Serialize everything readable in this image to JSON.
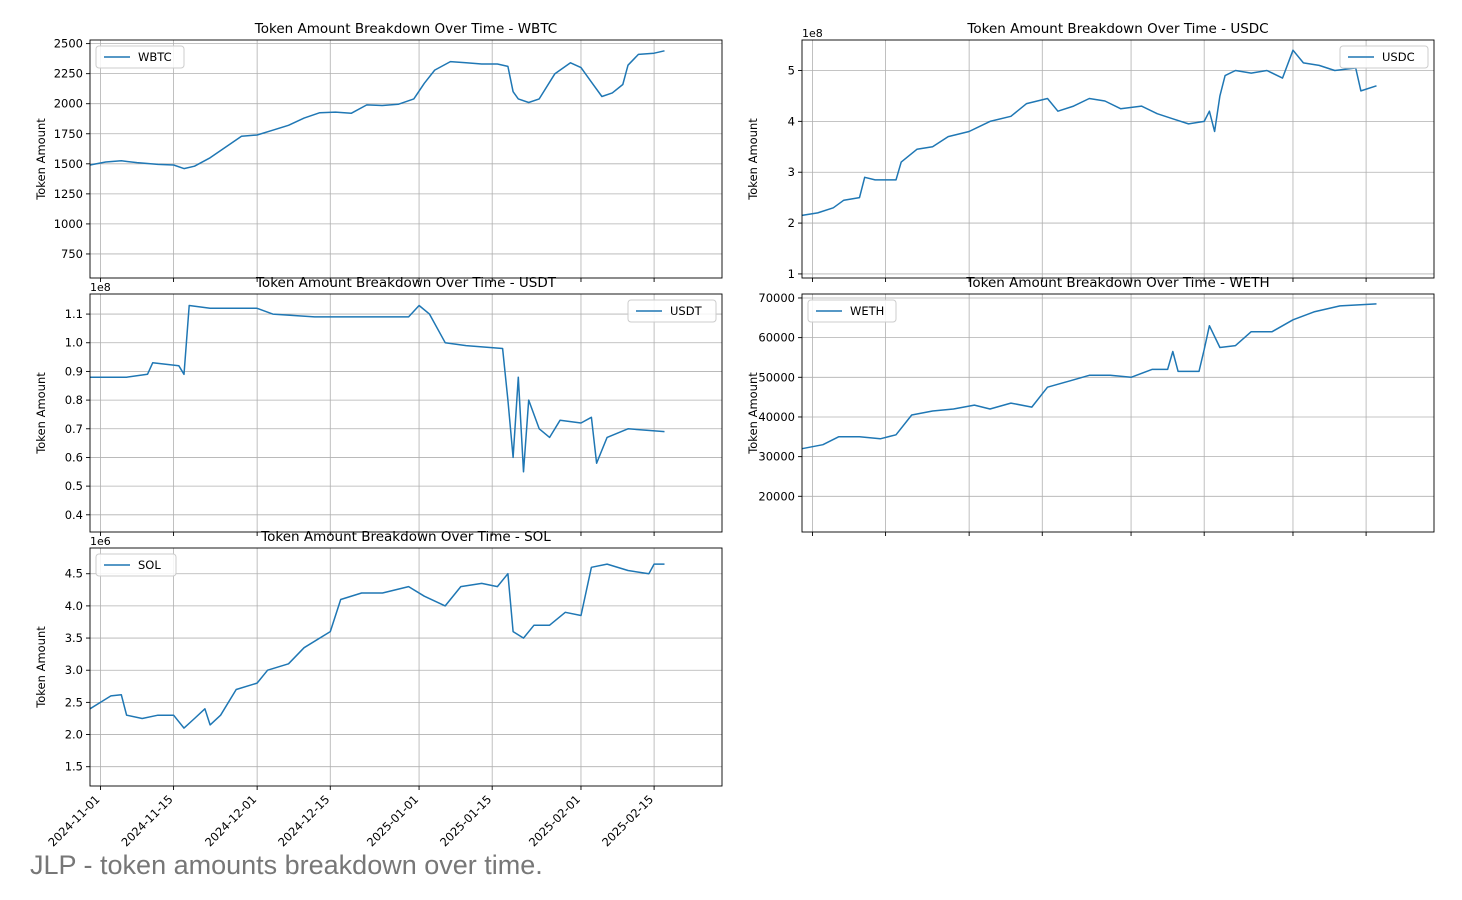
{
  "caption": "JLP - token amounts breakdown over time.",
  "colors": {
    "line": "#1f77b4",
    "grid": "#b0b0b0",
    "axis": "#000000",
    "legend_border": "#cccccc"
  },
  "shared_x_ticks": [
    "2024-11-01",
    "2024-11-15",
    "2024-12-01",
    "2024-12-15",
    "2025-01-01",
    "2025-01-15",
    "2025-02-01",
    "2025-02-15"
  ],
  "chart_data": [
    {
      "type": "line",
      "title": "Token Amount Breakdown Over Time - WBTC",
      "ylabel": "Token Amount",
      "offset_text": "",
      "legend": {
        "label": "WBTC",
        "placement": "top-left"
      },
      "ylim": [
        550,
        2530
      ],
      "xlim": [
        "2024-10-30",
        "2025-02-28"
      ],
      "yticks": [
        750,
        1000,
        1250,
        1500,
        1750,
        2000,
        2250,
        2500
      ],
      "ytick_labels": [
        "750",
        "1000",
        "1250",
        "1500",
        "1750",
        "2000",
        "2250",
        "2500"
      ],
      "xticks": [
        "2024-11-01",
        "2024-11-15",
        "2024-12-01",
        "2024-12-15",
        "2025-01-01",
        "2025-01-15",
        "2025-02-01",
        "2025-02-15"
      ],
      "show_xtick_labels": false,
      "grid": true,
      "series": [
        {
          "name": "WBTC",
          "points": [
            [
              "2024-10-30",
              1490
            ],
            [
              "2024-11-02",
              1515
            ],
            [
              "2024-11-05",
              1525
            ],
            [
              "2024-11-08",
              1510
            ],
            [
              "2024-11-12",
              1495
            ],
            [
              "2024-11-15",
              1490
            ],
            [
              "2024-11-17",
              1460
            ],
            [
              "2024-11-19",
              1480
            ],
            [
              "2024-11-22",
              1550
            ],
            [
              "2024-11-25",
              1640
            ],
            [
              "2024-11-28",
              1730
            ],
            [
              "2024-12-01",
              1740
            ],
            [
              "2024-12-04",
              1780
            ],
            [
              "2024-12-07",
              1820
            ],
            [
              "2024-12-10",
              1880
            ],
            [
              "2024-12-13",
              1925
            ],
            [
              "2024-12-16",
              1930
            ],
            [
              "2024-12-19",
              1920
            ],
            [
              "2024-12-22",
              1990
            ],
            [
              "2024-12-25",
              1985
            ],
            [
              "2024-12-28",
              1995
            ],
            [
              "2024-12-31",
              2040
            ],
            [
              "2025-01-02",
              2170
            ],
            [
              "2025-01-04",
              2280
            ],
            [
              "2025-01-07",
              2350
            ],
            [
              "2025-01-10",
              2340
            ],
            [
              "2025-01-13",
              2330
            ],
            [
              "2025-01-16",
              2330
            ],
            [
              "2025-01-18",
              2310
            ],
            [
              "2025-01-19",
              2100
            ],
            [
              "2025-01-20",
              2040
            ],
            [
              "2025-01-22",
              2010
            ],
            [
              "2025-01-24",
              2040
            ],
            [
              "2025-01-27",
              2250
            ],
            [
              "2025-01-30",
              2340
            ],
            [
              "2025-02-01",
              2300
            ],
            [
              "2025-02-03",
              2180
            ],
            [
              "2025-02-05",
              2060
            ],
            [
              "2025-02-07",
              2090
            ],
            [
              "2025-02-09",
              2160
            ],
            [
              "2025-02-10",
              2320
            ],
            [
              "2025-02-12",
              2410
            ],
            [
              "2025-02-15",
              2420
            ],
            [
              "2025-02-17",
              2440
            ]
          ]
        }
      ]
    },
    {
      "type": "line",
      "title": "Token Amount Breakdown Over Time - USDC",
      "ylabel": "Token Amount",
      "offset_text": "1e8",
      "legend": {
        "label": "USDC",
        "placement": "top-right"
      },
      "ylim": [
        0.92,
        5.6
      ],
      "xlim": [
        "2024-10-30",
        "2025-02-28"
      ],
      "yticks": [
        1,
        2,
        3,
        4,
        5
      ],
      "ytick_labels": [
        "1",
        "2",
        "3",
        "4",
        "5"
      ],
      "xticks": [
        "2024-11-01",
        "2024-11-15",
        "2024-12-01",
        "2024-12-15",
        "2025-01-01",
        "2025-01-15",
        "2025-02-01",
        "2025-02-15"
      ],
      "show_xtick_labels": false,
      "grid": true,
      "series": [
        {
          "name": "USDC",
          "points": [
            [
              "2024-10-30",
              2.15
            ],
            [
              "2024-11-02",
              2.2
            ],
            [
              "2024-11-05",
              2.3
            ],
            [
              "2024-11-07",
              2.45
            ],
            [
              "2024-11-10",
              2.5
            ],
            [
              "2024-11-11",
              2.9
            ],
            [
              "2024-11-13",
              2.85
            ],
            [
              "2024-11-15",
              2.85
            ],
            [
              "2024-11-17",
              2.85
            ],
            [
              "2024-11-18",
              3.2
            ],
            [
              "2024-11-21",
              3.45
            ],
            [
              "2024-11-24",
              3.5
            ],
            [
              "2024-11-27",
              3.7
            ],
            [
              "2024-12-01",
              3.8
            ],
            [
              "2024-12-05",
              4.0
            ],
            [
              "2024-12-09",
              4.1
            ],
            [
              "2024-12-12",
              4.35
            ],
            [
              "2024-12-16",
              4.45
            ],
            [
              "2024-12-18",
              4.2
            ],
            [
              "2024-12-21",
              4.3
            ],
            [
              "2024-12-24",
              4.45
            ],
            [
              "2024-12-27",
              4.4
            ],
            [
              "2024-12-30",
              4.25
            ],
            [
              "2025-01-03",
              4.3
            ],
            [
              "2025-01-06",
              4.15
            ],
            [
              "2025-01-09",
              4.05
            ],
            [
              "2025-01-12",
              3.95
            ],
            [
              "2025-01-15",
              4.0
            ],
            [
              "2025-01-16",
              4.2
            ],
            [
              "2025-01-17",
              3.8
            ],
            [
              "2025-01-18",
              4.5
            ],
            [
              "2025-01-19",
              4.9
            ],
            [
              "2025-01-21",
              5.0
            ],
            [
              "2025-01-24",
              4.95
            ],
            [
              "2025-01-27",
              5.0
            ],
            [
              "2025-01-30",
              4.85
            ],
            [
              "2025-02-01",
              5.4
            ],
            [
              "2025-02-03",
              5.15
            ],
            [
              "2025-02-06",
              5.1
            ],
            [
              "2025-02-09",
              5.0
            ],
            [
              "2025-02-13",
              5.05
            ],
            [
              "2025-02-14",
              4.6
            ],
            [
              "2025-02-17",
              4.7
            ]
          ]
        }
      ]
    },
    {
      "type": "line",
      "title": "Token Amount Breakdown Over Time - USDT",
      "ylabel": "Token Amount",
      "offset_text": "1e8",
      "legend": {
        "label": "USDT",
        "placement": "top-right"
      },
      "ylim": [
        0.34,
        1.17
      ],
      "xlim": [
        "2024-10-30",
        "2025-02-28"
      ],
      "yticks": [
        0.4,
        0.5,
        0.6,
        0.7,
        0.8,
        0.9,
        1.0,
        1.1
      ],
      "ytick_labels": [
        "0.4",
        "0.5",
        "0.6",
        "0.7",
        "0.8",
        "0.9",
        "1.0",
        "1.1"
      ],
      "xticks": [
        "2024-11-01",
        "2024-11-15",
        "2024-12-01",
        "2024-12-15",
        "2025-01-01",
        "2025-01-15",
        "2025-02-01",
        "2025-02-15"
      ],
      "show_xtick_labels": false,
      "grid": true,
      "series": [
        {
          "name": "USDT",
          "points": [
            [
              "2024-10-30",
              0.88
            ],
            [
              "2024-11-06",
              0.88
            ],
            [
              "2024-11-10",
              0.89
            ],
            [
              "2024-11-11",
              0.93
            ],
            [
              "2024-11-16",
              0.92
            ],
            [
              "2024-11-17",
              0.89
            ],
            [
              "2024-11-18",
              1.13
            ],
            [
              "2024-11-22",
              1.12
            ],
            [
              "2024-11-28",
              1.12
            ],
            [
              "2024-12-01",
              1.12
            ],
            [
              "2024-12-04",
              1.1
            ],
            [
              "2024-12-12",
              1.09
            ],
            [
              "2024-12-22",
              1.09
            ],
            [
              "2024-12-30",
              1.09
            ],
            [
              "2025-01-01",
              1.13
            ],
            [
              "2025-01-03",
              1.1
            ],
            [
              "2025-01-06",
              1.0
            ],
            [
              "2025-01-10",
              0.99
            ],
            [
              "2025-01-17",
              0.98
            ],
            [
              "2025-01-18",
              0.8
            ],
            [
              "2025-01-19",
              0.6
            ],
            [
              "2025-01-20",
              0.88
            ],
            [
              "2025-01-21",
              0.55
            ],
            [
              "2025-01-22",
              0.8
            ],
            [
              "2025-01-24",
              0.7
            ],
            [
              "2025-01-26",
              0.67
            ],
            [
              "2025-01-28",
              0.73
            ],
            [
              "2025-02-01",
              0.72
            ],
            [
              "2025-02-03",
              0.74
            ],
            [
              "2025-02-04",
              0.58
            ],
            [
              "2025-02-06",
              0.67
            ],
            [
              "2025-02-10",
              0.7
            ],
            [
              "2025-02-17",
              0.69
            ]
          ]
        }
      ]
    },
    {
      "type": "line",
      "title": "Token Amount Breakdown Over Time - WETH",
      "ylabel": "Token Amount",
      "offset_text": "",
      "legend": {
        "label": "WETH",
        "placement": "top-left"
      },
      "ylim": [
        11000,
        71000
      ],
      "xlim": [
        "2024-10-30",
        "2025-02-28"
      ],
      "yticks": [
        20000,
        30000,
        40000,
        50000,
        60000,
        70000
      ],
      "ytick_labels": [
        "20000",
        "30000",
        "40000",
        "50000",
        "60000",
        "70000"
      ],
      "xticks": [
        "2024-11-01",
        "2024-11-15",
        "2024-12-01",
        "2024-12-15",
        "2025-01-01",
        "2025-01-15",
        "2025-02-01",
        "2025-02-15"
      ],
      "show_xtick_labels": false,
      "grid": true,
      "series": [
        {
          "name": "WETH",
          "points": [
            [
              "2024-10-30",
              32000
            ],
            [
              "2024-11-03",
              33000
            ],
            [
              "2024-11-06",
              35000
            ],
            [
              "2024-11-10",
              35000
            ],
            [
              "2024-11-14",
              34500
            ],
            [
              "2024-11-17",
              35500
            ],
            [
              "2024-11-20",
              40500
            ],
            [
              "2024-11-24",
              41500
            ],
            [
              "2024-11-28",
              42000
            ],
            [
              "2024-12-02",
              43000
            ],
            [
              "2024-12-05",
              42000
            ],
            [
              "2024-12-09",
              43500
            ],
            [
              "2024-12-13",
              42500
            ],
            [
              "2024-12-16",
              47500
            ],
            [
              "2024-12-20",
              49000
            ],
            [
              "2024-12-24",
              50500
            ],
            [
              "2024-12-28",
              50500
            ],
            [
              "2025-01-01",
              50000
            ],
            [
              "2025-01-05",
              52000
            ],
            [
              "2025-01-08",
              52000
            ],
            [
              "2025-01-09",
              56500
            ],
            [
              "2025-01-10",
              51500
            ],
            [
              "2025-01-14",
              51500
            ],
            [
              "2025-01-15",
              57000
            ],
            [
              "2025-01-16",
              63000
            ],
            [
              "2025-01-18",
              57500
            ],
            [
              "2025-01-21",
              58000
            ],
            [
              "2025-01-24",
              61500
            ],
            [
              "2025-01-28",
              61500
            ],
            [
              "2025-02-01",
              64500
            ],
            [
              "2025-02-05",
              66500
            ],
            [
              "2025-02-10",
              68000
            ],
            [
              "2025-02-17",
              68500
            ]
          ]
        }
      ]
    },
    {
      "type": "line",
      "title": "Token Amount Breakdown Over Time - SOL",
      "ylabel": "Token Amount",
      "offset_text": "1e6",
      "legend": {
        "label": "SOL",
        "placement": "top-left"
      },
      "ylim": [
        1.2,
        4.9
      ],
      "xlim": [
        "2024-10-30",
        "2025-02-28"
      ],
      "yticks": [
        1.5,
        2.0,
        2.5,
        3.0,
        3.5,
        4.0,
        4.5
      ],
      "ytick_labels": [
        "1.5",
        "2.0",
        "2.5",
        "3.0",
        "3.5",
        "4.0",
        "4.5"
      ],
      "xticks": [
        "2024-11-01",
        "2024-11-15",
        "2024-12-01",
        "2024-12-15",
        "2025-01-01",
        "2025-01-15",
        "2025-02-01",
        "2025-02-15"
      ],
      "show_xtick_labels": true,
      "grid": true,
      "series": [
        {
          "name": "SOL",
          "points": [
            [
              "2024-10-30",
              2.4
            ],
            [
              "2024-11-01",
              2.5
            ],
            [
              "2024-11-03",
              2.6
            ],
            [
              "2024-11-05",
              2.62
            ],
            [
              "2024-11-06",
              2.3
            ],
            [
              "2024-11-09",
              2.25
            ],
            [
              "2024-11-12",
              2.3
            ],
            [
              "2024-11-15",
              2.3
            ],
            [
              "2024-11-17",
              2.1
            ],
            [
              "2024-11-19",
              2.25
            ],
            [
              "2024-11-21",
              2.4
            ],
            [
              "2024-11-22",
              2.15
            ],
            [
              "2024-11-24",
              2.3
            ],
            [
              "2024-11-27",
              2.7
            ],
            [
              "2024-12-01",
              2.8
            ],
            [
              "2024-12-03",
              3.0
            ],
            [
              "2024-12-07",
              3.1
            ],
            [
              "2024-12-10",
              3.35
            ],
            [
              "2024-12-15",
              3.6
            ],
            [
              "2024-12-17",
              4.1
            ],
            [
              "2024-12-21",
              4.2
            ],
            [
              "2024-12-25",
              4.2
            ],
            [
              "2024-12-30",
              4.3
            ],
            [
              "2025-01-02",
              4.15
            ],
            [
              "2025-01-06",
              4.0
            ],
            [
              "2025-01-09",
              4.3
            ],
            [
              "2025-01-13",
              4.35
            ],
            [
              "2025-01-16",
              4.3
            ],
            [
              "2025-01-18",
              4.5
            ],
            [
              "2025-01-19",
              3.6
            ],
            [
              "2025-01-21",
              3.5
            ],
            [
              "2025-01-23",
              3.7
            ],
            [
              "2025-01-26",
              3.7
            ],
            [
              "2025-01-29",
              3.9
            ],
            [
              "2025-02-01",
              3.85
            ],
            [
              "2025-02-03",
              4.6
            ],
            [
              "2025-02-06",
              4.65
            ],
            [
              "2025-02-10",
              4.55
            ],
            [
              "2025-02-14",
              4.5
            ],
            [
              "2025-02-15",
              4.65
            ],
            [
              "2025-02-17",
              4.65
            ]
          ]
        }
      ]
    }
  ]
}
